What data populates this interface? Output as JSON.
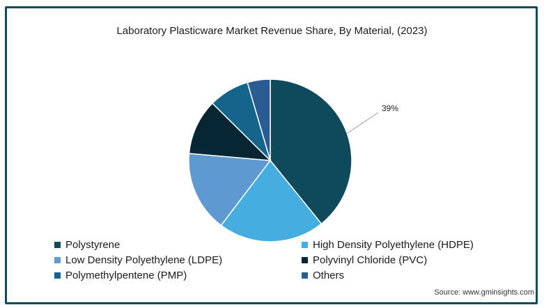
{
  "title": "Laboratory Plasticware Market Revenue Share, By Material, (2023)",
  "source": "Source: www.gminsights.com",
  "chart_data": {
    "type": "pie",
    "title": "Laboratory Plasticware Market Revenue Share, By Material, (2023)",
    "legend_position": "bottom",
    "slices": [
      {
        "name": "Polystyrene",
        "value": 39,
        "label": "39%",
        "color": "#0e4a5b"
      },
      {
        "name": "High Density Polyethylene (HDPE)",
        "value": 21,
        "label": "",
        "color": "#45ade0"
      },
      {
        "name": "Low Density Polyethylene (LDPE)",
        "value": 16,
        "label": "",
        "color": "#5f99d2"
      },
      {
        "name": "Polyvinyl Chloride (PVC)",
        "value": 11,
        "label": "",
        "color": "#062634"
      },
      {
        "name": "Polymethylpentene (PMP)",
        "value": 8,
        "label": "",
        "color": "#14648b"
      },
      {
        "name": "Others",
        "value": 4.5,
        "label": "",
        "color": "#2a5c91"
      }
    ]
  },
  "legend": [
    {
      "label": "Polystyrene",
      "color": "#0e4a5b"
    },
    {
      "label": "High Density Polyethylene (HDPE)",
      "color": "#45ade0"
    },
    {
      "label": "Low Density Polyethylene (LDPE)",
      "color": "#5f99d2"
    },
    {
      "label": "Polyvinyl Chloride (PVC)",
      "color": "#062634"
    },
    {
      "label": "Polymethylpentene (PMP)",
      "color": "#14648b"
    },
    {
      "label": "Others",
      "color": "#2a5c91"
    }
  ]
}
